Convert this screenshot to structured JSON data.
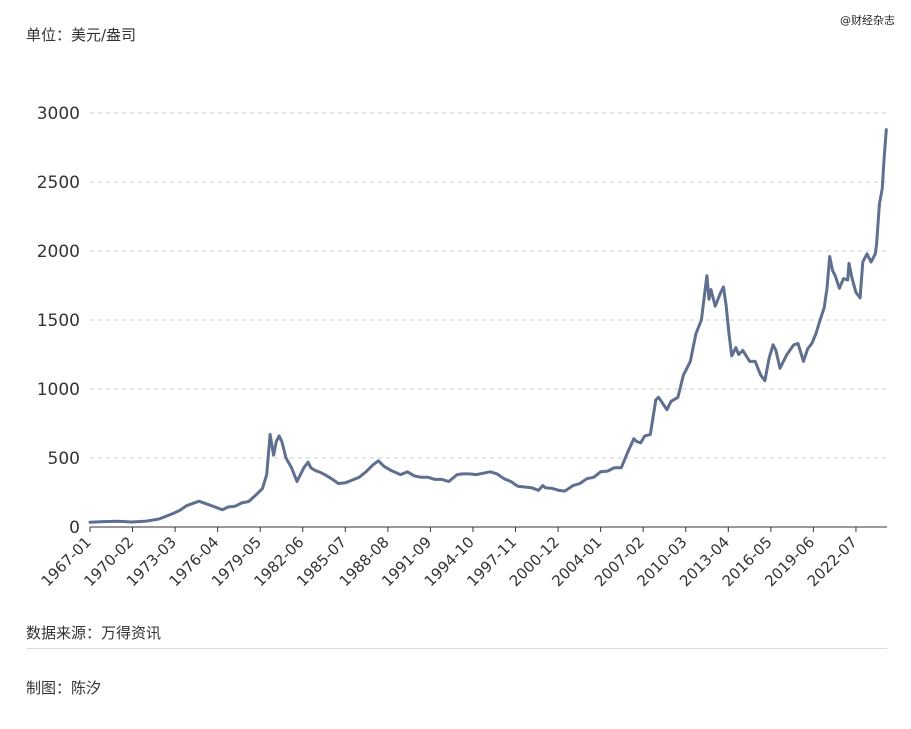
{
  "header": {
    "unit": "单位：美元/盎司",
    "watermark": "@财经杂志"
  },
  "footer": {
    "source": "数据来源：万得资讯",
    "author": "制图：陈汐"
  },
  "colors": {
    "line": "#5f6f8f",
    "grid": "#cccccc",
    "axis": "#333333"
  },
  "chart_data": {
    "type": "line",
    "title": "",
    "xlabel": "",
    "ylabel": "单位：美元/盎司",
    "xlim": [
      1967.0,
      2024.75
    ],
    "ylim": [
      0,
      3000
    ],
    "yticks": [
      0,
      500,
      1000,
      1500,
      2000,
      2500,
      3000
    ],
    "xticks": [
      "1967-01",
      "1970-02",
      "1973-03",
      "1976-04",
      "1979-05",
      "1982-06",
      "1985-07",
      "1988-08",
      "1991-09",
      "1994-10",
      "1997-11",
      "2000-12",
      "2004-01",
      "2007-02",
      "2010-03",
      "2013-04",
      "2016-05",
      "2019-06",
      "2022-07"
    ],
    "grid": "horizontal-dashed",
    "series": [
      {
        "x": [
          1967.0,
          1968.0,
          1969.0,
          1970.0,
          1971.0,
          1972.0,
          1973.0,
          1973.5,
          1974.0,
          1974.9,
          1975.5,
          1976.6,
          1977.0,
          1977.5,
          1978.0,
          1978.5,
          1979.0,
          1979.5,
          1979.8,
          1980.05,
          1980.3,
          1980.5,
          1980.7,
          1980.9,
          1981.2,
          1981.6,
          1982.0,
          1982.5,
          1982.8,
          1983.0,
          1983.3,
          1983.6,
          1984.0,
          1984.5,
          1985.0,
          1985.5,
          1986.0,
          1986.5,
          1987.0,
          1987.5,
          1987.9,
          1988.3,
          1988.8,
          1989.5,
          1990.0,
          1990.5,
          1991.0,
          1991.5,
          1992.0,
          1992.5,
          1993.0,
          1993.6,
          1994.0,
          1994.5,
          1995.0,
          1995.5,
          1996.0,
          1996.5,
          1997.0,
          1997.5,
          1998.0,
          1998.5,
          1999.0,
          1999.5,
          1999.8,
          2000.0,
          2000.5,
          2001.0,
          2001.4,
          2002.0,
          2002.5,
          2003.0,
          2003.5,
          2004.0,
          2004.5,
          2005.0,
          2005.5,
          2006.0,
          2006.4,
          2006.6,
          2006.9,
          2007.2,
          2007.6,
          2008.0,
          2008.2,
          2008.8,
          2009.1,
          2009.6,
          2010.0,
          2010.5,
          2010.9,
          2011.3,
          2011.55,
          2011.7,
          2011.85,
          2012.0,
          2012.3,
          2012.7,
          2012.9,
          2013.1,
          2013.3,
          2013.5,
          2013.8,
          2014.0,
          2014.3,
          2014.8,
          2015.2,
          2015.6,
          2015.9,
          2016.2,
          2016.5,
          2016.7,
          2017.0,
          2017.5,
          2018.0,
          2018.3,
          2018.7,
          2019.0,
          2019.3,
          2019.6,
          2019.9,
          2020.2,
          2020.4,
          2020.6,
          2020.8,
          2021.0,
          2021.3,
          2021.6,
          2021.9,
          2022.0,
          2022.2,
          2022.5,
          2022.8,
          2023.0,
          2023.3,
          2023.6,
          2023.9,
          2024.0,
          2024.2,
          2024.4,
          2024.55,
          2024.7
        ],
        "y": [
          35,
          39,
          42,
          36,
          41,
          58,
          97,
          120,
          154,
          187,
          165,
          125,
          145,
          150,
          175,
          185,
          230,
          280,
          380,
          670,
          520,
          620,
          660,
          620,
          500,
          430,
          330,
          430,
          470,
          430,
          410,
          400,
          380,
          350,
          315,
          320,
          340,
          360,
          400,
          450,
          480,
          440,
          410,
          380,
          400,
          370,
          360,
          360,
          345,
          345,
          330,
          380,
          385,
          385,
          380,
          390,
          400,
          385,
          350,
          330,
          295,
          290,
          285,
          265,
          300,
          285,
          280,
          265,
          260,
          300,
          315,
          350,
          360,
          400,
          405,
          430,
          430,
          550,
          640,
          620,
          610,
          660,
          670,
          920,
          940,
          850,
          910,
          940,
          1100,
          1200,
          1400,
          1500,
          1700,
          1820,
          1650,
          1720,
          1600,
          1700,
          1740,
          1600,
          1400,
          1240,
          1300,
          1250,
          1280,
          1200,
          1200,
          1100,
          1060,
          1220,
          1320,
          1280,
          1150,
          1250,
          1320,
          1330,
          1200,
          1290,
          1330,
          1400,
          1500,
          1590,
          1730,
          1960,
          1860,
          1820,
          1730,
          1800,
          1790,
          1910,
          1810,
          1700,
          1660,
          1920,
          1980,
          1920,
          1980,
          2050,
          2340,
          2450,
          2680,
          2880
        ]
      }
    ]
  }
}
